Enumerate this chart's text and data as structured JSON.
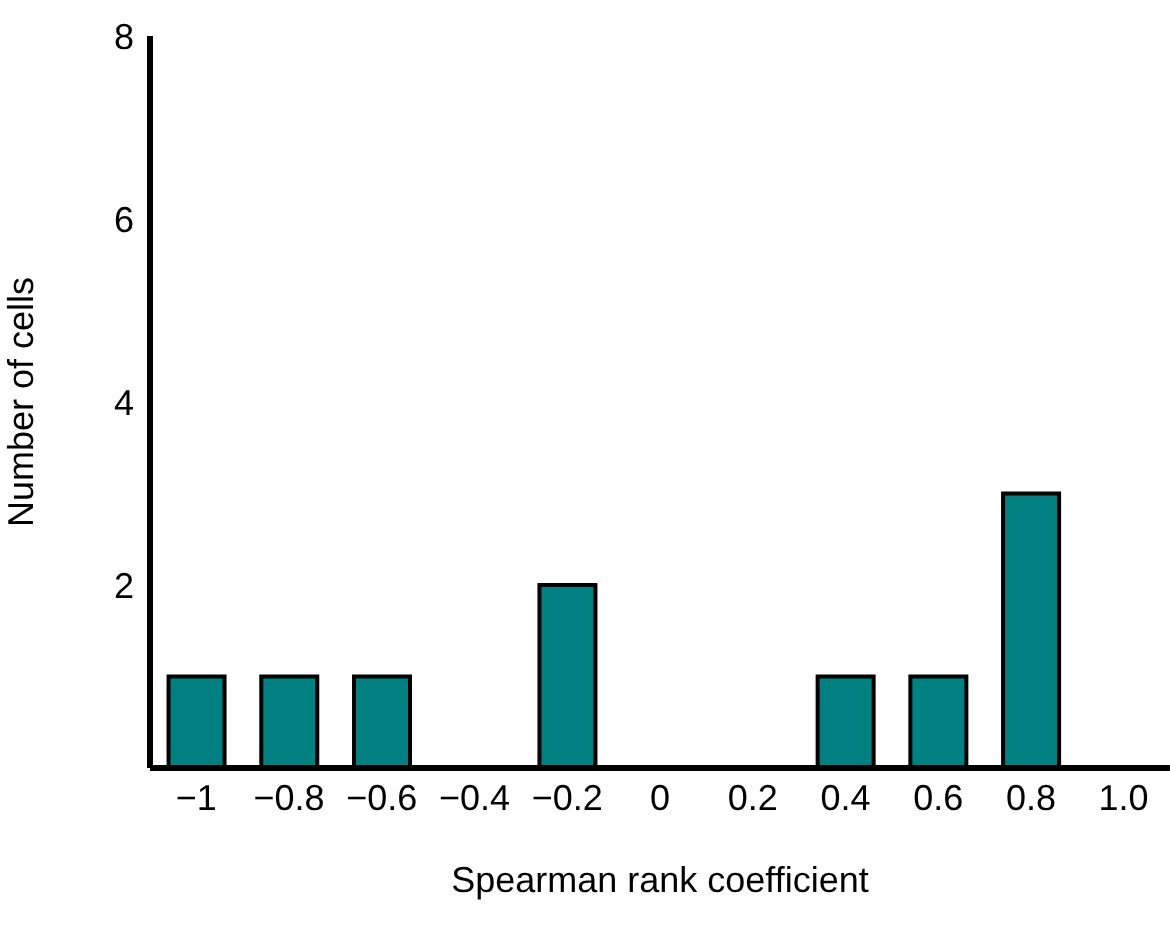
{
  "chart_data": {
    "type": "bar",
    "xlabel": "Spearman rank coefficient",
    "ylabel": "Number of cells",
    "categories": [
      "−1",
      "−0.8",
      "−0.6",
      "−0.4",
      "−0.2",
      "0",
      "0.2",
      "0.4",
      "0.6",
      "0.8",
      "1.0"
    ],
    "values": [
      1,
      1,
      1,
      0,
      2,
      0,
      0,
      1,
      1,
      3,
      0
    ],
    "color": "#008080",
    "ylim": [
      0,
      8
    ],
    "yticks": [
      {
        "value": 0,
        "label": null
      },
      2,
      4,
      6,
      8
    ],
    "grid": false,
    "legend": false
  }
}
